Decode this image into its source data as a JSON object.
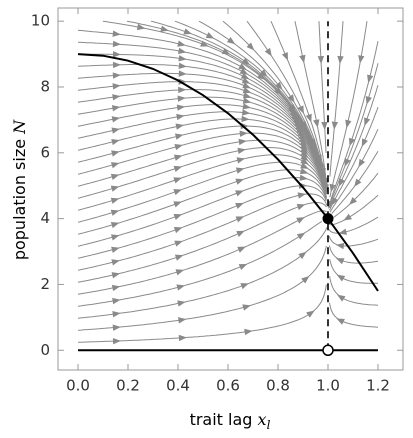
{
  "chart_data": {
    "type": "streamplot",
    "xlabel": "trait lag ",
    "xlabel_var": "x",
    "xlabel_sub": "l",
    "ylabel": "population size ",
    "ylabel_var": "N",
    "xlim": [
      -0.08,
      1.3
    ],
    "ylim": [
      -0.6,
      10.4
    ],
    "xticks": [
      {
        "value": 0,
        "label": "0.0"
      },
      {
        "value": 0.2,
        "label": "0.2"
      },
      {
        "value": 0.4,
        "label": "0.4"
      },
      {
        "value": 0.6,
        "label": "0.6"
      },
      {
        "value": 0.8,
        "label": "0.8"
      },
      {
        "value": 1,
        "label": "1.0"
      },
      {
        "value": 1.2,
        "label": "1.2"
      }
    ],
    "yticks": [
      0,
      2,
      4,
      6,
      8,
      10
    ],
    "nullcline": {
      "x": [
        0,
        0.1,
        0.2,
        0.3,
        0.4,
        0.5,
        0.6,
        0.7,
        0.8,
        0.9,
        1,
        1.1,
        1.2
      ],
      "y": [
        9,
        8.95,
        8.8,
        8.55,
        8.2,
        7.75,
        7.2,
        6.55,
        5.8,
        4.95,
        4,
        2.95,
        1.8
      ]
    },
    "axis_line": {
      "x": [
        0,
        1.2
      ],
      "y": [
        0,
        0
      ]
    },
    "vertical_nullcline": {
      "x": [
        1,
        1
      ],
      "y": [
        0,
        10
      ]
    },
    "stable_point": {
      "x": 1,
      "y": 4
    },
    "unstable_point": {
      "x": 1,
      "y": 0
    },
    "stream_color": "#8a8a8a",
    "curve_color": "#000000"
  }
}
